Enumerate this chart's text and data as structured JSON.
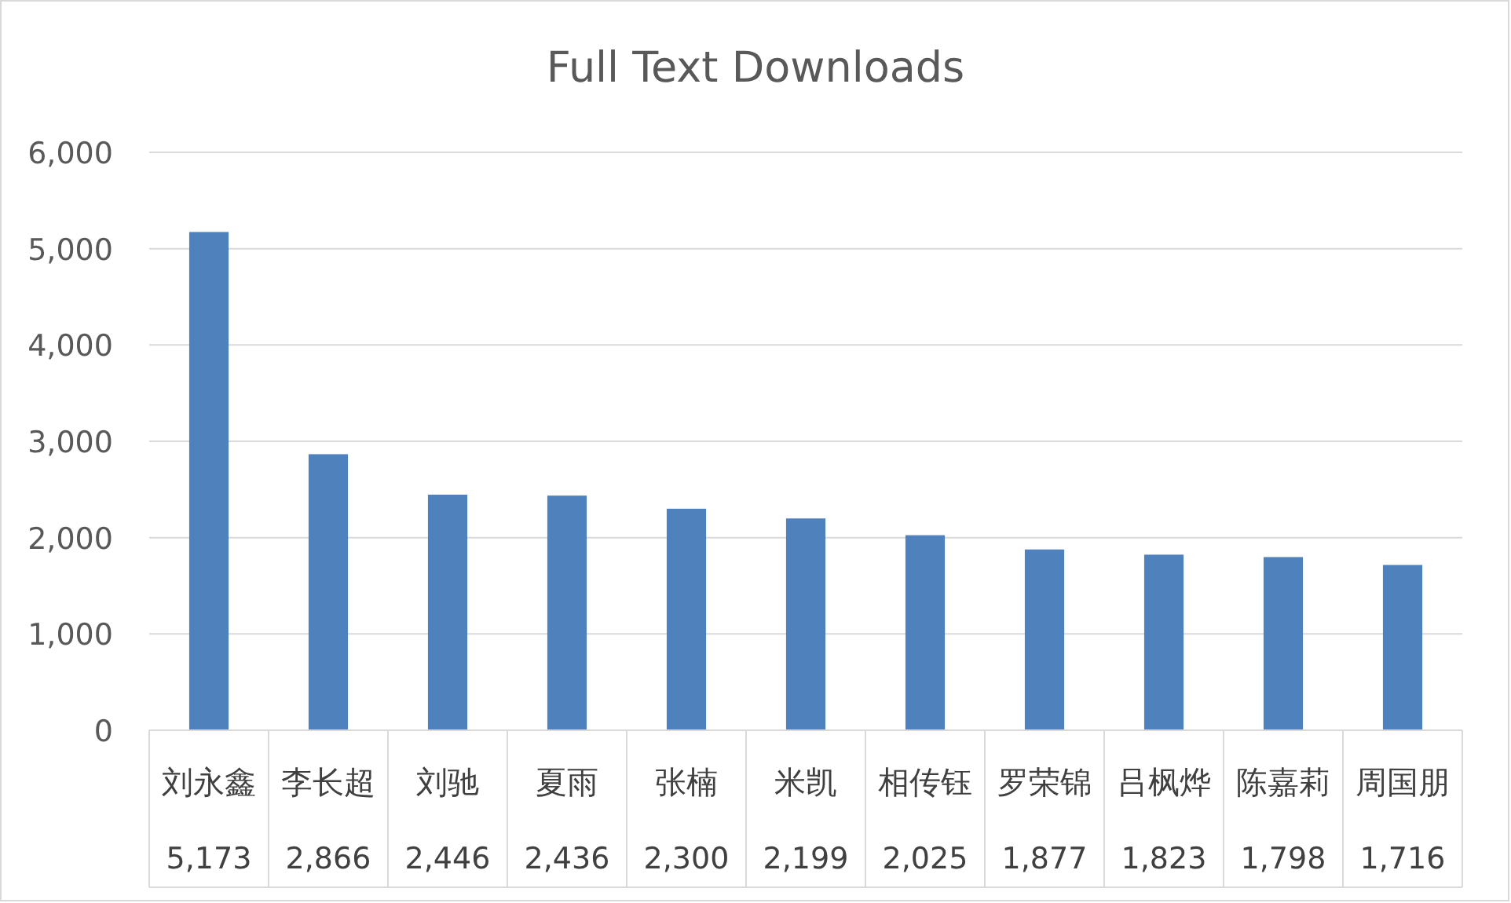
{
  "chart_data": {
    "type": "bar",
    "title": "Full Text Downloads",
    "categories": [
      "刘永鑫",
      "李长超",
      "刘驰",
      "夏雨",
      "张楠",
      "米凯",
      "相传钰",
      "罗荣锦",
      "吕枫烨",
      "陈嘉莉",
      "周国朋"
    ],
    "values": [
      5173,
      2866,
      2446,
      2436,
      2300,
      2199,
      2025,
      1877,
      1823,
      1798,
      1716
    ],
    "value_labels": [
      "5,173",
      "2,866",
      "2,446",
      "2,436",
      "2,300",
      "2,199",
      "2,025",
      "1,877",
      "1,823",
      "1,798",
      "1,716"
    ],
    "color": "#4f81bd",
    "ylim": [
      0,
      6000
    ],
    "yticks": [
      0,
      {
        "value": 1000,
        "label": "1,000"
      },
      {
        "value": 2000,
        "label": "2,000"
      },
      {
        "value": 3000,
        "label": "3,000"
      },
      {
        "value": 4000,
        "label": "4,000"
      },
      {
        "value": 5000,
        "label": "5,000"
      },
      {
        "value": 6000,
        "label": "6,000"
      }
    ],
    "grid": "y"
  }
}
